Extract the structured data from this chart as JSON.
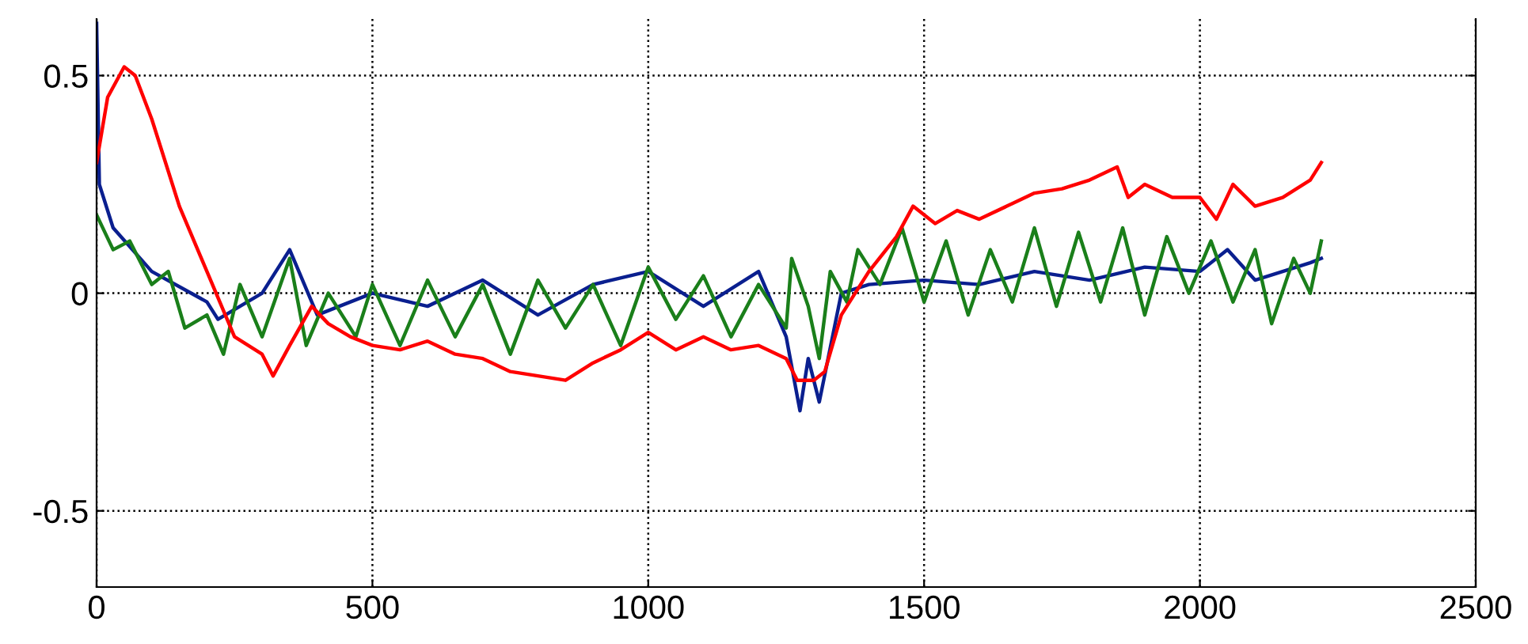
{
  "chart_data": {
    "type": "line",
    "xlim": [
      0,
      2500
    ],
    "ylim": [
      -0.675,
      0.63
    ],
    "xticks": [
      0,
      500,
      1000,
      1500,
      2000,
      2500
    ],
    "yticks": [
      -0.5,
      0,
      0.5
    ],
    "grid": true,
    "legend": false,
    "marker": "none",
    "line_style": "solid",
    "series": [
      {
        "color": "#0a1f8f",
        "x": [
          0,
          5,
          30,
          100,
          200,
          220,
          300,
          350,
          400,
          500,
          600,
          700,
          800,
          900,
          1000,
          1100,
          1200,
          1250,
          1275,
          1290,
          1310,
          1350,
          1400,
          1500,
          1600,
          1700,
          1800,
          1900,
          2000,
          2050,
          2100,
          2200,
          2220
        ],
        "values": [
          0.62,
          0.25,
          0.15,
          0.05,
          -0.02,
          -0.06,
          0.0,
          0.1,
          -0.05,
          0.0,
          -0.03,
          0.03,
          -0.05,
          0.02,
          0.05,
          -0.03,
          0.05,
          -0.1,
          -0.27,
          -0.15,
          -0.25,
          0.0,
          0.02,
          0.03,
          0.02,
          0.05,
          0.03,
          0.06,
          0.05,
          0.1,
          0.03,
          0.07,
          0.08
        ]
      },
      {
        "color": "#1a7f1a",
        "x": [
          0,
          30,
          60,
          100,
          130,
          160,
          200,
          230,
          260,
          300,
          350,
          380,
          420,
          470,
          500,
          550,
          600,
          650,
          700,
          750,
          800,
          850,
          900,
          950,
          1000,
          1050,
          1100,
          1150,
          1200,
          1250,
          1260,
          1290,
          1310,
          1330,
          1360,
          1380,
          1420,
          1460,
          1500,
          1540,
          1580,
          1620,
          1660,
          1700,
          1740,
          1780,
          1820,
          1860,
          1900,
          1940,
          1980,
          2020,
          2060,
          2100,
          2130,
          2170,
          2200,
          2220
        ],
        "values": [
          0.18,
          0.1,
          0.12,
          0.02,
          0.05,
          -0.08,
          -0.05,
          -0.14,
          0.02,
          -0.1,
          0.08,
          -0.12,
          0.0,
          -0.1,
          0.02,
          -0.12,
          0.03,
          -0.1,
          0.02,
          -0.14,
          0.03,
          -0.08,
          0.02,
          -0.12,
          0.06,
          -0.06,
          0.04,
          -0.1,
          0.02,
          -0.08,
          0.08,
          -0.03,
          -0.15,
          0.05,
          -0.02,
          0.1,
          0.02,
          0.15,
          -0.02,
          0.12,
          -0.05,
          0.1,
          -0.02,
          0.15,
          -0.03,
          0.14,
          -0.02,
          0.15,
          -0.05,
          0.13,
          0.0,
          0.12,
          -0.02,
          0.1,
          -0.07,
          0.08,
          0.0,
          0.12
        ]
      },
      {
        "color": "#ff0000",
        "x": [
          0,
          20,
          50,
          70,
          100,
          150,
          200,
          250,
          300,
          320,
          350,
          390,
          420,
          460,
          500,
          550,
          600,
          650,
          700,
          750,
          800,
          850,
          900,
          950,
          1000,
          1050,
          1100,
          1150,
          1200,
          1250,
          1270,
          1300,
          1320,
          1350,
          1400,
          1450,
          1480,
          1520,
          1560,
          1600,
          1650,
          1700,
          1750,
          1800,
          1850,
          1870,
          1900,
          1950,
          2000,
          2030,
          2060,
          2100,
          2150,
          2200,
          2220
        ],
        "values": [
          0.3,
          0.45,
          0.52,
          0.5,
          0.4,
          0.2,
          0.05,
          -0.1,
          -0.14,
          -0.19,
          -0.12,
          -0.03,
          -0.07,
          -0.1,
          -0.12,
          -0.13,
          -0.11,
          -0.14,
          -0.15,
          -0.18,
          -0.19,
          -0.2,
          -0.16,
          -0.13,
          -0.09,
          -0.13,
          -0.1,
          -0.13,
          -0.12,
          -0.15,
          -0.2,
          -0.2,
          -0.18,
          -0.05,
          0.05,
          0.13,
          0.2,
          0.16,
          0.19,
          0.17,
          0.2,
          0.23,
          0.24,
          0.26,
          0.29,
          0.22,
          0.25,
          0.22,
          0.22,
          0.17,
          0.25,
          0.2,
          0.22,
          0.26,
          0.3
        ]
      }
    ]
  }
}
